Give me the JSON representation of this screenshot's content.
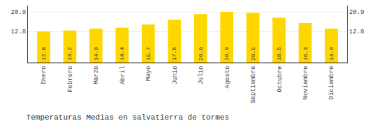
{
  "chart_data": {
    "type": "bar",
    "title": "Temperaturas Medias en salvatierra de tormes",
    "categories": [
      "Enero",
      "Febrero",
      "Marzo",
      "Abril",
      "Mayo",
      "Junio",
      "Julio",
      "Agosto",
      "Septiembre",
      "Octubre",
      "Noviembre",
      "Diciembre"
    ],
    "values": [
      12.8,
      13.2,
      14.0,
      14.4,
      15.7,
      17.6,
      20.0,
      20.9,
      20.5,
      18.5,
      16.3,
      14.0
    ],
    "value_labels": [
      "12.8",
      "13.2",
      "14.0",
      "14.4",
      "15.7",
      "17.6",
      "20.0",
      "20.9",
      "20.5",
      "18.5",
      "16.3",
      "14.0"
    ],
    "color": "#FFD700",
    "data_labels": true,
    "ylim": [
      0,
      23.5
    ],
    "yticks": [
      12.8,
      20.9
    ],
    "y2lim": [
      0,
      23.5
    ],
    "y2ticks": [
      12.8,
      20.9
    ],
    "grid": true
  }
}
